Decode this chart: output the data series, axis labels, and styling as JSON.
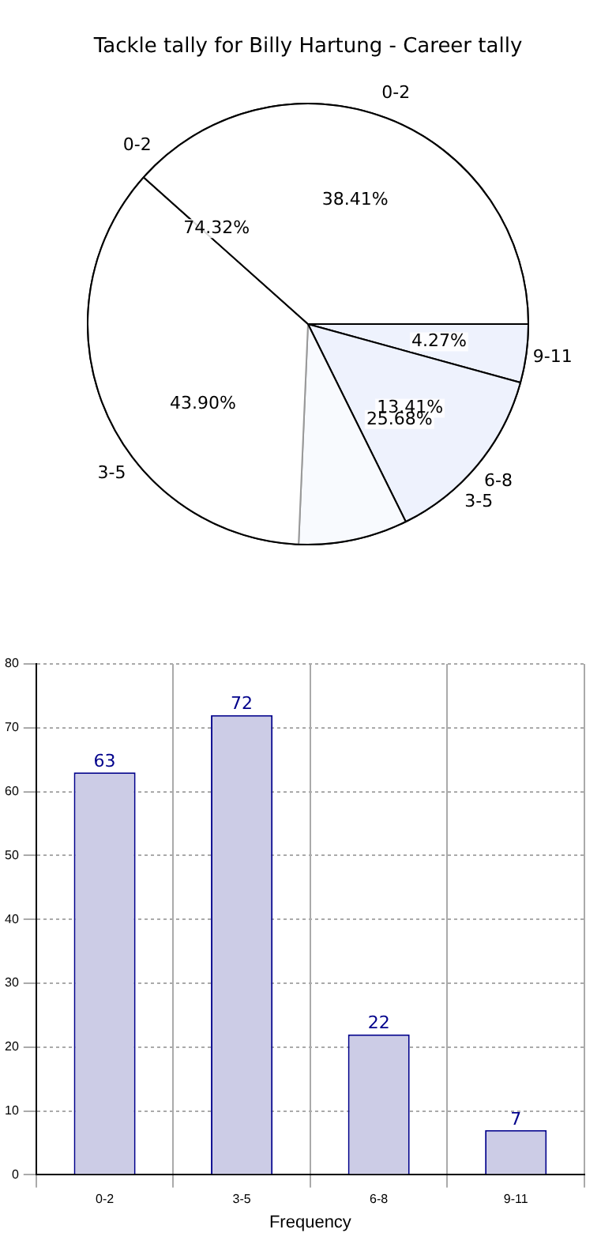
{
  "chart_data": [
    {
      "type": "pie",
      "title": "Tackle tally for Billy Hartung - Career tally",
      "categories": [
        "0-2",
        "3-5",
        "6-8",
        "9-11"
      ],
      "values": [
        38.41,
        43.9,
        13.41,
        4.27
      ],
      "value_labels": [
        "38.41%",
        "43.90%",
        "13.41%",
        "4.27%"
      ],
      "colors": [
        "#ffffff",
        "#ffffff",
        "#eef2fd",
        "#eef2fd"
      ]
    },
    {
      "type": "pie",
      "categories": [
        "0-2",
        "3-5"
      ],
      "values": [
        74.32,
        25.68
      ],
      "value_labels": [
        "74.32%",
        "25.68%"
      ],
      "colors": [
        "#ffffff",
        "#eef2fd"
      ]
    },
    {
      "type": "bar",
      "xlabel": "Frequency",
      "categories": [
        "0-2",
        "3-5",
        "6-8",
        "9-11"
      ],
      "values": [
        63,
        72,
        22,
        7
      ],
      "color": "#cccce6",
      "ylim": [
        0,
        80
      ],
      "yticks": [
        0,
        10,
        20,
        30,
        40,
        50,
        60,
        70,
        80
      ],
      "grid": true,
      "data_labels": true
    }
  ]
}
